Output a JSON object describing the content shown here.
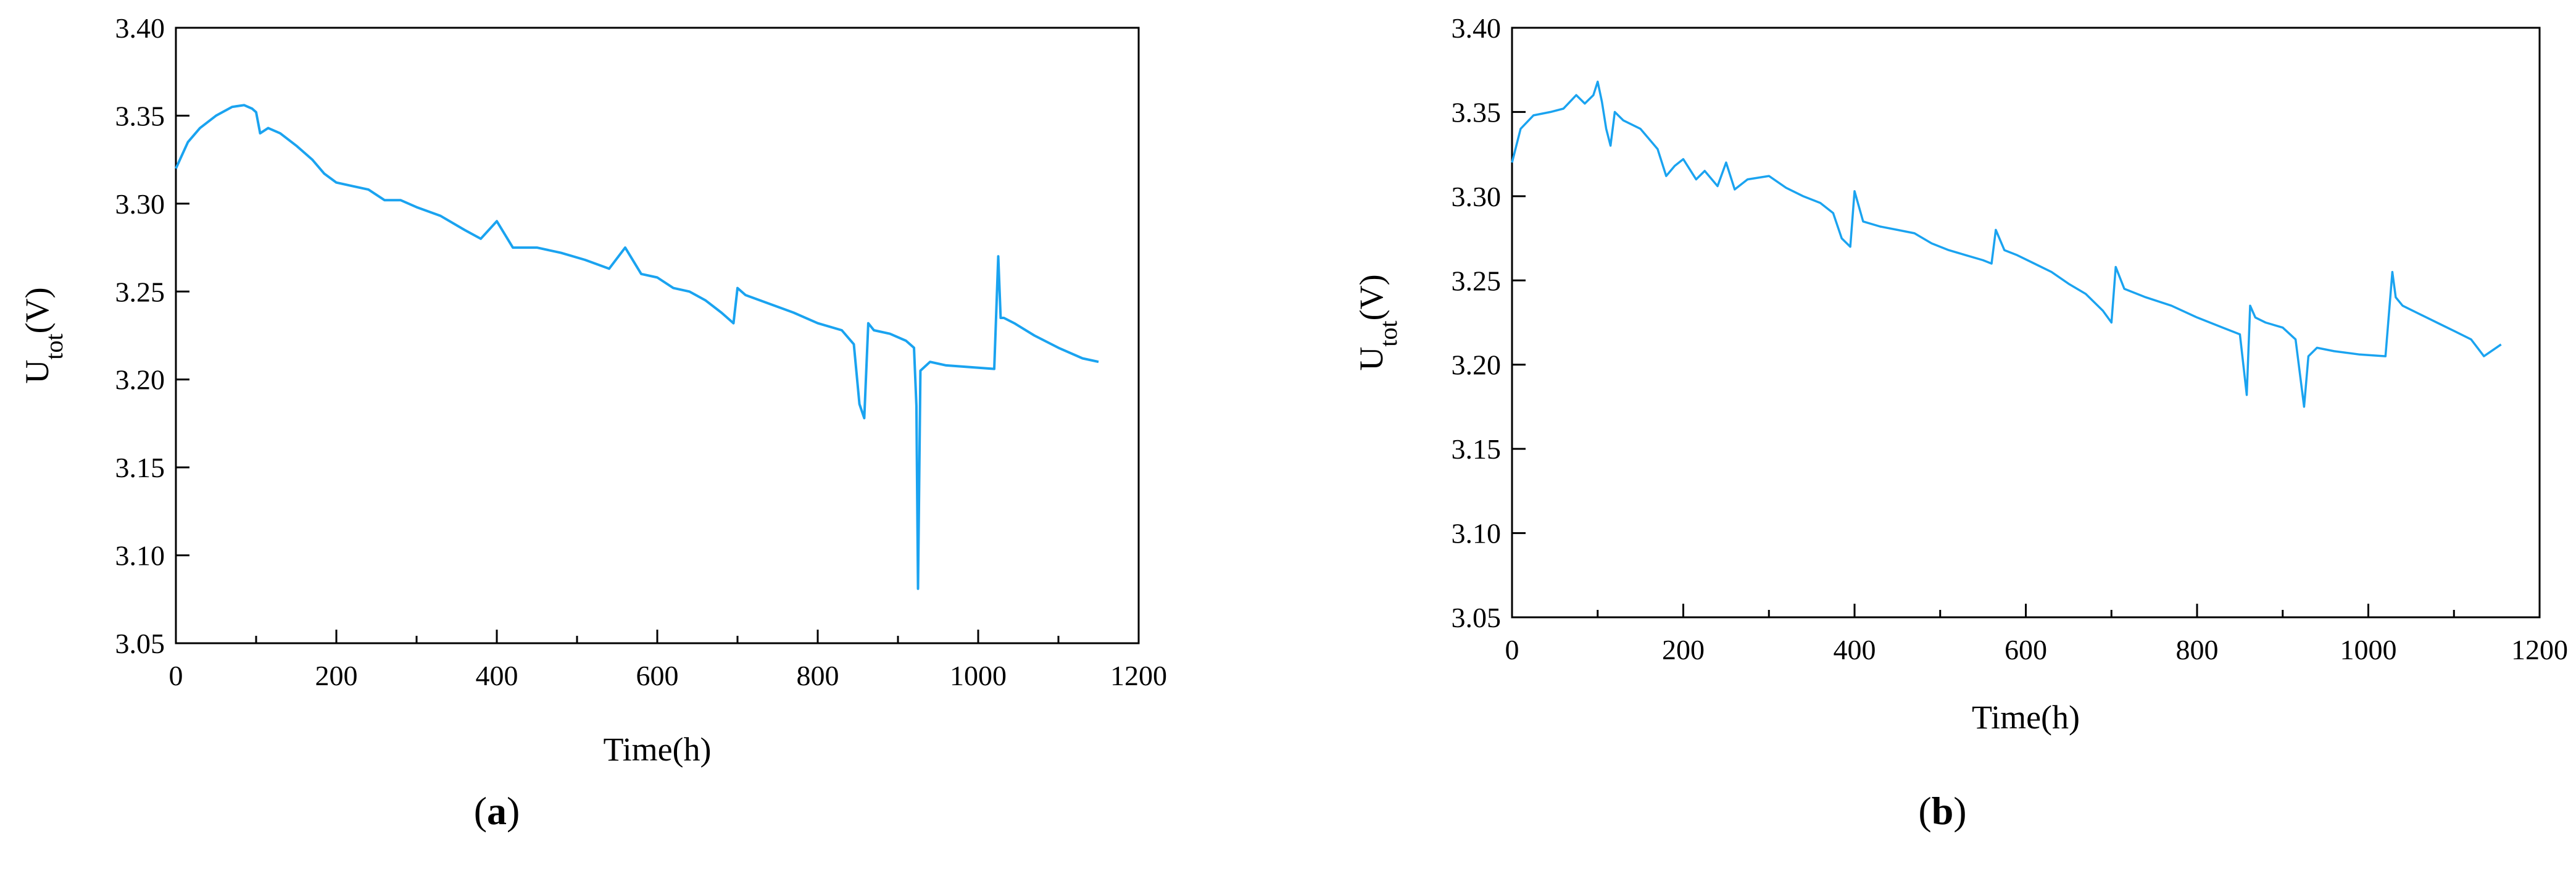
{
  "chart_data": [
    {
      "type": "line",
      "panel_label": "a",
      "xlabel": "Time(h)",
      "ylabel": {
        "base": "U",
        "sub": "tot",
        "unit": "(V)"
      },
      "xlim": [
        0,
        1200
      ],
      "ylim": [
        3.05,
        3.4
      ],
      "x_ticks": [
        "0",
        "200",
        "400",
        "600",
        "800",
        "1000",
        "1200"
      ],
      "y_ticks": [
        "3.05",
        "3.10",
        "3.15",
        "3.20",
        "3.25",
        "3.30",
        "3.35",
        "3.40"
      ],
      "grid": false,
      "series": [
        {
          "color": "#1aa3f0",
          "x": [
            0,
            15,
            30,
            50,
            70,
            85,
            95,
            100,
            105,
            115,
            130,
            150,
            170,
            185,
            200,
            220,
            240,
            260,
            280,
            300,
            330,
            360,
            380,
            400,
            420,
            450,
            480,
            510,
            540,
            560,
            580,
            600,
            620,
            640,
            660,
            680,
            695,
            700,
            710,
            740,
            770,
            800,
            830,
            845,
            852,
            858,
            863,
            870,
            890,
            910,
            920,
            923,
            925,
            928,
            940,
            960,
            990,
            1020,
            1025,
            1028,
            1032,
            1045,
            1070,
            1100,
            1130,
            1150
          ],
          "values": [
            3.32,
            3.335,
            3.343,
            3.35,
            3.355,
            3.356,
            3.354,
            3.352,
            3.34,
            3.343,
            3.34,
            3.333,
            3.325,
            3.317,
            3.312,
            3.31,
            3.308,
            3.302,
            3.302,
            3.298,
            3.293,
            3.285,
            3.28,
            3.29,
            3.275,
            3.275,
            3.272,
            3.268,
            3.263,
            3.275,
            3.26,
            3.258,
            3.252,
            3.25,
            3.245,
            3.238,
            3.232,
            3.252,
            3.248,
            3.243,
            3.238,
            3.232,
            3.228,
            3.22,
            3.186,
            3.178,
            3.232,
            3.228,
            3.226,
            3.222,
            3.218,
            3.185,
            3.081,
            3.205,
            3.21,
            3.208,
            3.207,
            3.206,
            3.27,
            3.235,
            3.235,
            3.232,
            3.225,
            3.218,
            3.212,
            3.21
          ]
        }
      ]
    },
    {
      "type": "line",
      "panel_label": "b",
      "xlabel": "Time(h)",
      "ylabel": {
        "base": "U",
        "sub": "tot",
        "unit": "(V)"
      },
      "xlim": [
        0,
        1200
      ],
      "ylim": [
        3.05,
        3.4
      ],
      "x_ticks": [
        "0",
        "200",
        "400",
        "600",
        "800",
        "1000",
        "1200"
      ],
      "y_ticks": [
        "3.05",
        "3.10",
        "3.15",
        "3.20",
        "3.25",
        "3.30",
        "3.35",
        "3.40"
      ],
      "grid": false,
      "series": [
        {
          "color": "#1aa3f0",
          "x": [
            0,
            10,
            25,
            45,
            60,
            75,
            85,
            95,
            100,
            105,
            110,
            115,
            120,
            130,
            150,
            170,
            180,
            190,
            200,
            215,
            225,
            240,
            250,
            260,
            275,
            300,
            320,
            340,
            360,
            375,
            385,
            395,
            400,
            410,
            430,
            450,
            470,
            490,
            510,
            530,
            550,
            560,
            565,
            575,
            590,
            610,
            630,
            650,
            670,
            690,
            700,
            705,
            715,
            740,
            770,
            800,
            830,
            850,
            858,
            862,
            868,
            880,
            900,
            915,
            925,
            930,
            940,
            960,
            990,
            1020,
            1028,
            1032,
            1040,
            1060,
            1080,
            1100,
            1120,
            1135,
            1155
          ],
          "values": [
            3.32,
            3.34,
            3.348,
            3.35,
            3.352,
            3.36,
            3.355,
            3.36,
            3.368,
            3.356,
            3.34,
            3.33,
            3.35,
            3.345,
            3.34,
            3.328,
            3.312,
            3.318,
            3.322,
            3.31,
            3.315,
            3.306,
            3.32,
            3.304,
            3.31,
            3.312,
            3.305,
            3.3,
            3.296,
            3.29,
            3.275,
            3.27,
            3.303,
            3.285,
            3.282,
            3.28,
            3.278,
            3.272,
            3.268,
            3.265,
            3.262,
            3.26,
            3.28,
            3.268,
            3.265,
            3.26,
            3.255,
            3.248,
            3.242,
            3.232,
            3.225,
            3.258,
            3.245,
            3.24,
            3.235,
            3.228,
            3.222,
            3.218,
            3.182,
            3.235,
            3.228,
            3.225,
            3.222,
            3.215,
            3.175,
            3.205,
            3.21,
            3.208,
            3.206,
            3.205,
            3.255,
            3.24,
            3.235,
            3.23,
            3.225,
            3.22,
            3.215,
            3.205,
            3.212
          ]
        }
      ]
    }
  ]
}
